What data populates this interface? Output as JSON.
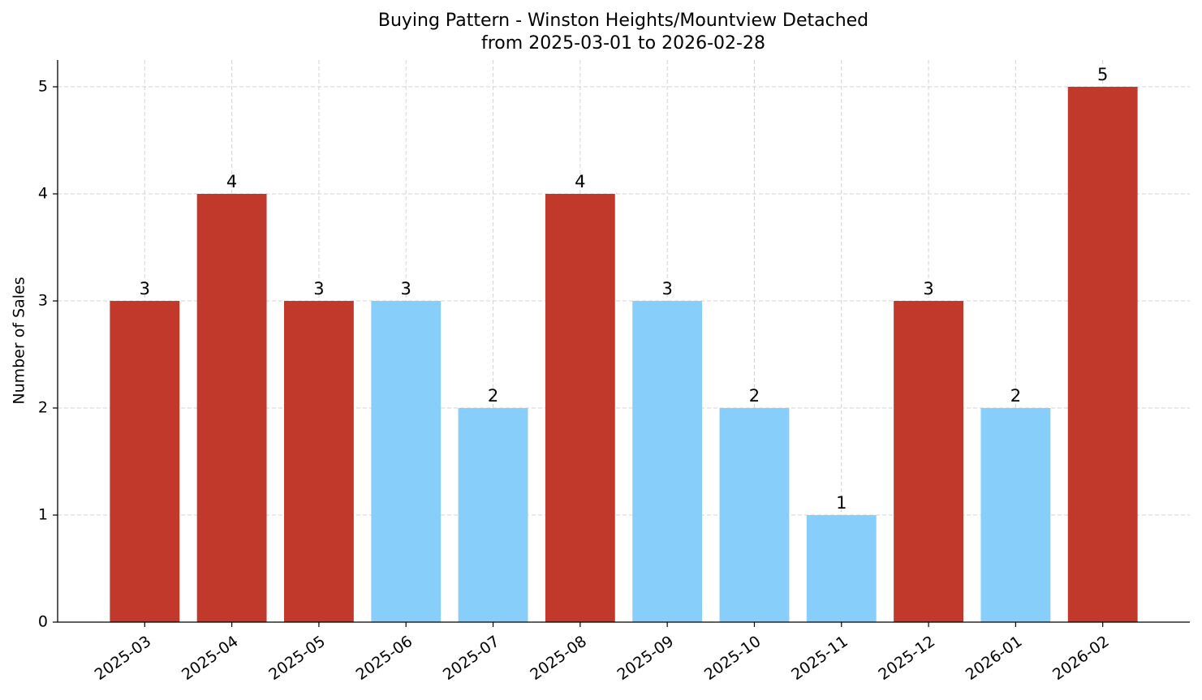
{
  "chart_data": {
    "type": "bar",
    "title": "Buying Pattern - Winston Heights/Mountview Detached",
    "subtitle": "from 2025-03-01 to 2026-02-28",
    "y_label": "Number of Sales",
    "categories": [
      "2025-03",
      "2025-04",
      "2025-05",
      "2025-06",
      "2025-07",
      "2025-08",
      "2025-09",
      "2025-10",
      "2025-11",
      "2025-12",
      "2026-01",
      "2026-02"
    ],
    "values": [
      3,
      4,
      3,
      3,
      2,
      4,
      3,
      2,
      1,
      3,
      2,
      5
    ],
    "colors": [
      "#c0392b",
      "#c0392b",
      "#c0392b",
      "#87cefa",
      "#87cefa",
      "#c0392b",
      "#87cefa",
      "#87cefa",
      "#87cefa",
      "#c0392b",
      "#87cefa",
      "#c0392b"
    ],
    "ylim": [
      0,
      5.25
    ],
    "yticks": [
      0,
      1,
      2,
      3,
      4,
      5
    ],
    "grid": true
  }
}
